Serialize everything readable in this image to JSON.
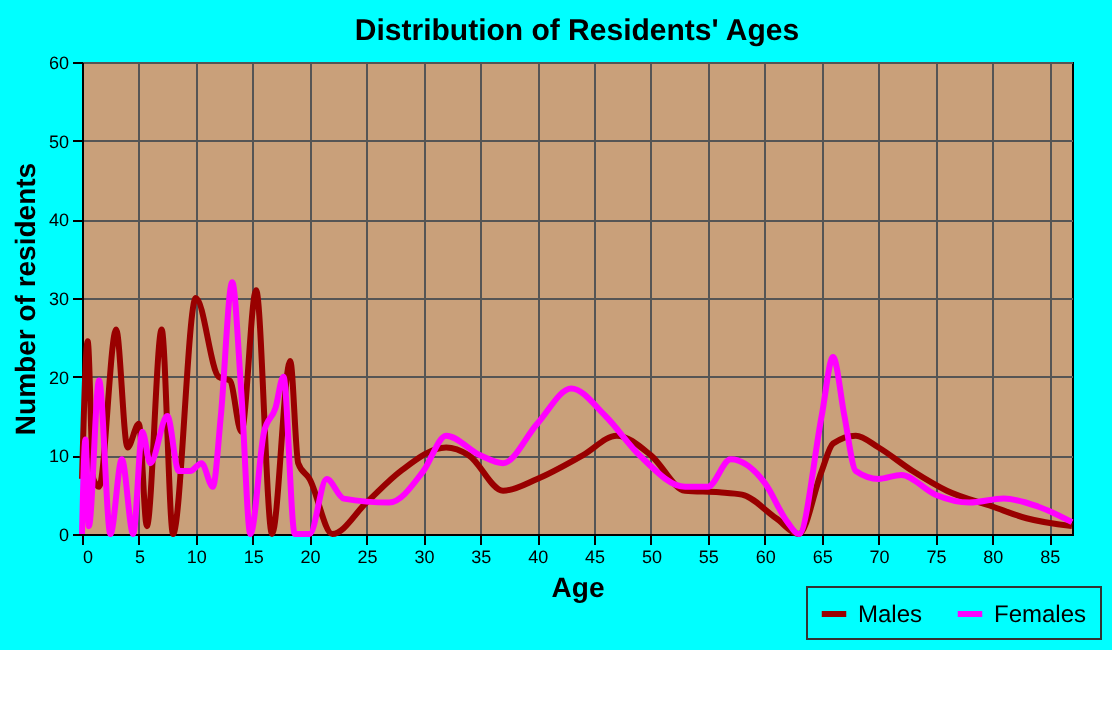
{
  "chart_data": {
    "type": "line",
    "title": "Distribution of Residents' Ages",
    "xlabel": "Age",
    "ylabel": "Number of residents",
    "xlim": [
      0,
      87
    ],
    "ylim": [
      0,
      60
    ],
    "xticks": [
      0,
      5,
      10,
      15,
      20,
      25,
      30,
      35,
      40,
      45,
      50,
      55,
      60,
      65,
      70,
      75,
      80,
      85
    ],
    "yticks": [
      0,
      10,
      20,
      30,
      40,
      50,
      60
    ],
    "grid": true,
    "legend": "bottom right",
    "marker": "none",
    "line_style": "solid",
    "series": [
      {
        "name": "Males",
        "color": "#990000",
        "x": [
          0,
          0.5,
          1,
          1.5,
          3,
          4,
          5,
          5.7,
          7,
          8,
          10,
          12,
          13,
          14,
          15.3,
          16.7,
          18.3,
          19,
          20,
          22,
          25,
          28,
          32,
          34,
          37,
          40,
          44,
          47,
          50,
          53,
          56,
          58,
          61,
          63,
          65,
          66,
          68,
          70,
          73,
          76,
          80,
          83,
          87
        ],
        "values": [
          7,
          24.5,
          7,
          6,
          26,
          11,
          14,
          1,
          26,
          0,
          30,
          20,
          19.5,
          13,
          31,
          0,
          22,
          9,
          7,
          0,
          4,
          8,
          11,
          10,
          5.5,
          7,
          10,
          12.5,
          10,
          5.5,
          5.3,
          5,
          2,
          0,
          8,
          11.5,
          12.5,
          11,
          8,
          5.5,
          3.5,
          2,
          1
        ]
      },
      {
        "name": "Females",
        "color": "#ff00ff",
        "x": [
          0,
          0.3,
          0.6,
          1.5,
          2.5,
          3.5,
          4.5,
          5.3,
          6,
          7.5,
          8.5,
          9.5,
          10.5,
          11.5,
          12.2,
          13.2,
          14,
          14.8,
          16,
          17,
          17.7,
          18.7,
          20,
          21.5,
          23,
          27,
          30,
          32,
          35,
          37,
          40,
          43,
          46,
          49,
          53,
          55,
          57,
          60,
          62,
          63,
          65,
          66,
          67,
          68,
          70,
          72,
          75,
          78,
          81,
          84,
          87
        ],
        "values": [
          0,
          12,
          1,
          19.5,
          0,
          9.5,
          0,
          13,
          9,
          15,
          8,
          8,
          9,
          6,
          15,
          32,
          18,
          0,
          13,
          16,
          20,
          0,
          0,
          7,
          4.5,
          4,
          8,
          12.5,
          10,
          9,
          14,
          18.5,
          15,
          10,
          6,
          6,
          9.5,
          6.5,
          1.5,
          0,
          15,
          22.5,
          15,
          8,
          7,
          7.5,
          5,
          4,
          4.5,
          3.5,
          1.5
        ]
      }
    ]
  }
}
